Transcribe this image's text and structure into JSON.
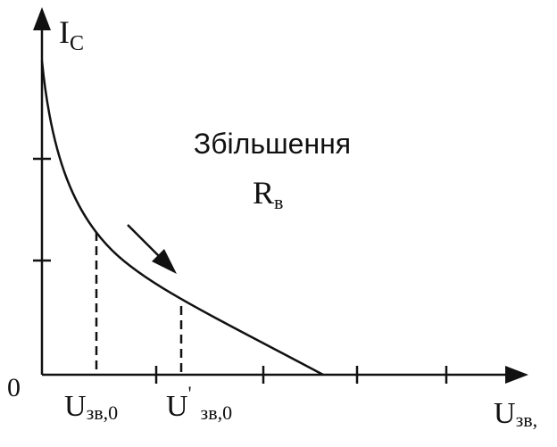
{
  "axis_labels": {
    "y": {
      "symbol": "I",
      "subscript": "C"
    },
    "origin": "0",
    "x": {
      "symbol": "U",
      "subscript": "зв,"
    }
  },
  "annotation": {
    "line1": "Збільшення",
    "line2": {
      "symbol": "R",
      "subscript": "в"
    }
  },
  "markers": [
    {
      "symbol": "U",
      "subscript": "зв,0"
    },
    {
      "symbol": "U",
      "prime": "'",
      "subscript": "зв,0"
    }
  ]
}
